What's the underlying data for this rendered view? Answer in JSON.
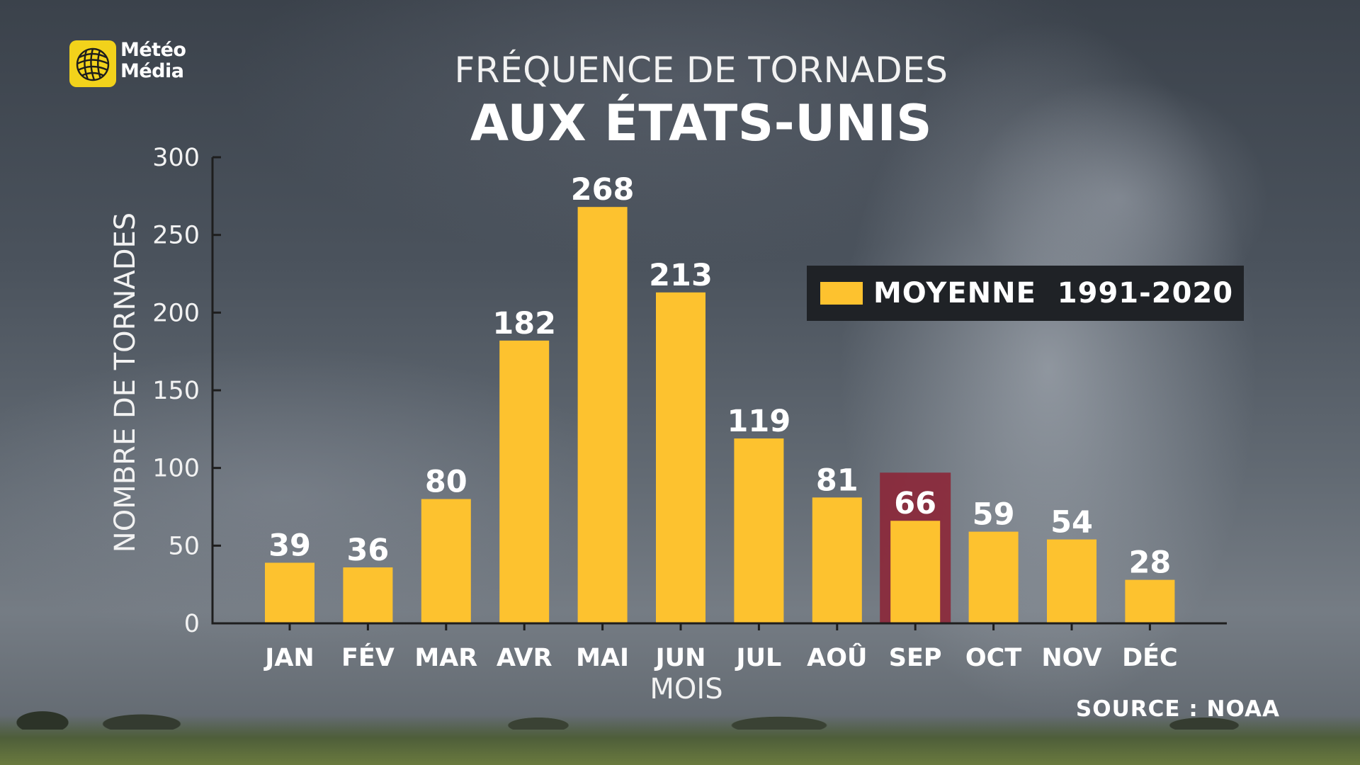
{
  "brand": {
    "logo_line1": "Météo",
    "logo_line2": "Média",
    "logo_color": "#f2d21b"
  },
  "header": {
    "title_line1": "FRÉQUENCE DE TORNADES",
    "title_line2": "AUX ÉTATS-UNIS"
  },
  "legend": {
    "label": "MOYENNE  1991-2020",
    "color": "#fdc22f"
  },
  "source": "SOURCE : NOAA",
  "chart_data": {
    "type": "bar",
    "title": "FRÉQUENCE DE TORNADES AUX ÉTATS-UNIS",
    "xlabel": "MOIS",
    "ylabel": "NOMBRE DE TORNADES",
    "categories": [
      "JAN",
      "FÉV",
      "MAR",
      "AVR",
      "MAI",
      "JUN",
      "JUL",
      "AOÛ",
      "SEP",
      "OCT",
      "NOV",
      "DÉC"
    ],
    "series": [
      {
        "name": "MOYENNE  1991-2020",
        "values": [
          39,
          36,
          80,
          182,
          268,
          213,
          119,
          81,
          66,
          59,
          54,
          28
        ]
      }
    ],
    "ylim": [
      0,
      300
    ],
    "yticks": [
      0,
      50,
      100,
      150,
      200,
      250,
      300
    ],
    "grid": false,
    "legend_position": "top-right",
    "highlighted_category": "SEP",
    "colors": {
      "bar": "#fdc22f",
      "highlight": "#8c2738",
      "axis": "#1e1e1e"
    }
  }
}
